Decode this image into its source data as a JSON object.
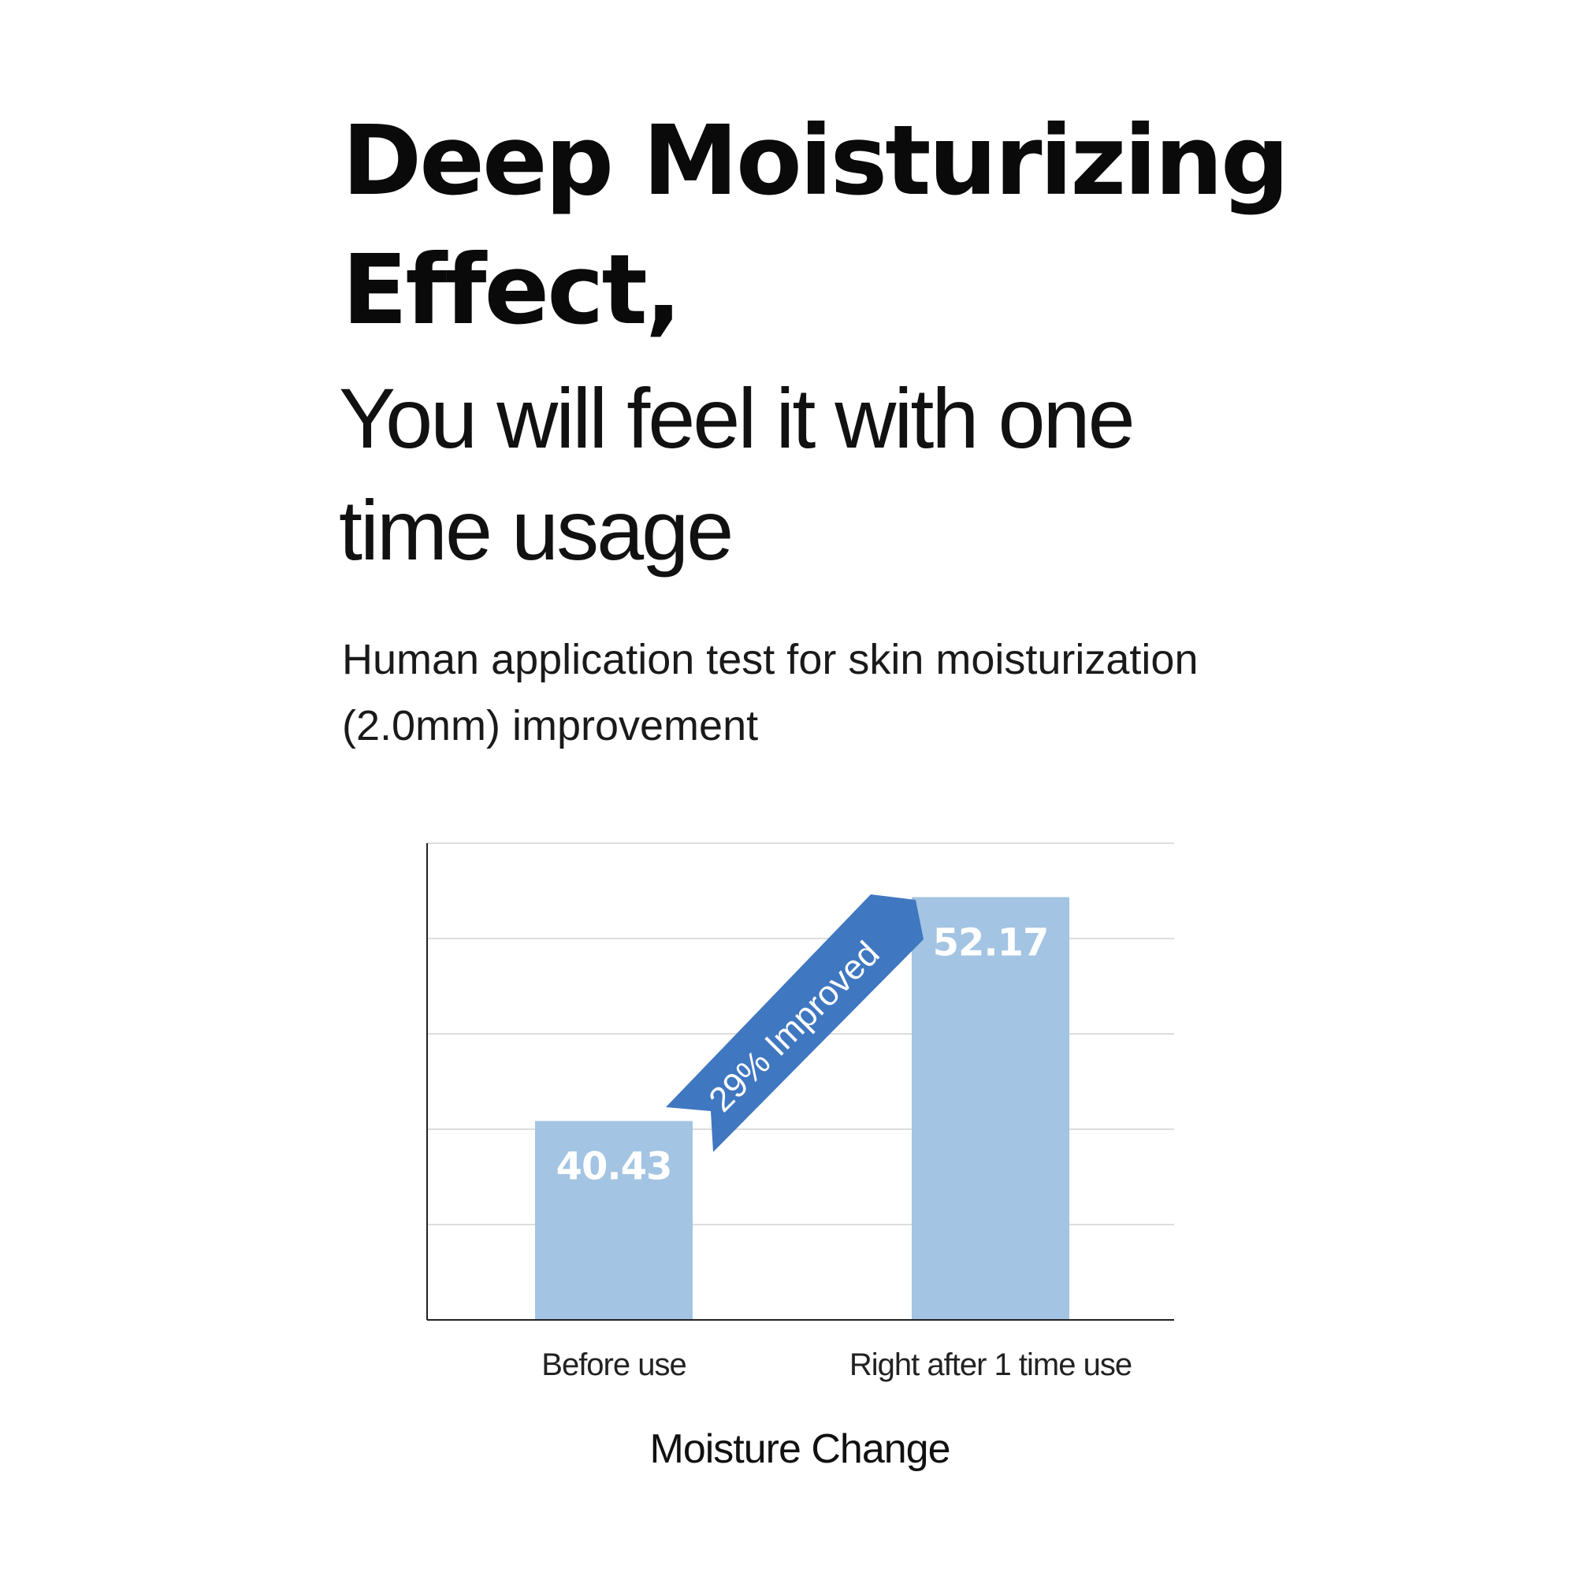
{
  "headline": {
    "line1": "Deep Moisturizing",
    "line2": "Effect,"
  },
  "subheadline": {
    "line1": "You will feel it with one",
    "line2": "time usage"
  },
  "caption": {
    "line1": "Human application test for skin moisturization",
    "line2": "(2.0mm) improvement"
  },
  "chart_data": {
    "type": "bar",
    "categories": [
      "Before use",
      "Right after 1 time use"
    ],
    "values": [
      40.43,
      52.17
    ],
    "data_labels": [
      "40.43",
      "52.17"
    ],
    "xlabel": "Moisture Change",
    "ylabel": "",
    "ylim": [
      30,
      55
    ],
    "grid": true,
    "annotation": "29% Improved",
    "colors": {
      "bar": "#a3c4e2",
      "bar_label": "#ffffff",
      "arrow": "#3f77c0",
      "gridline": "#dddddd",
      "axis": "#222222"
    }
  }
}
